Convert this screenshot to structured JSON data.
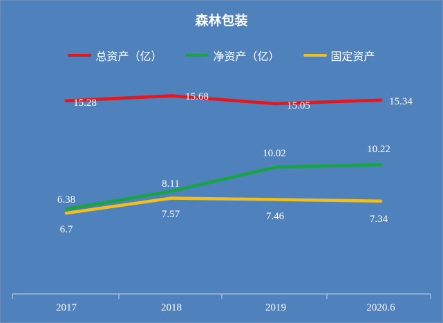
{
  "chart_data": {
    "type": "line",
    "title": "森林包装",
    "categories": [
      "2017",
      "2018",
      "2019",
      "2020.6"
    ],
    "series": [
      {
        "name": "总资产（亿）",
        "color": "#e8151b",
        "values": [
          15.28,
          15.68,
          15.05,
          15.34
        ]
      },
      {
        "name": "净资产（亿）",
        "color": "#17a542",
        "values": [
          6.7,
          8.11,
          10.02,
          10.22
        ]
      },
      {
        "name": "固定资产",
        "color": "#f0bf19",
        "values": [
          6.38,
          7.57,
          7.46,
          7.34
        ]
      }
    ],
    "legend_position": "top",
    "grid": false,
    "data_labels": [
      {
        "series": 0,
        "labels": [
          "15.28",
          "15.68",
          "15.05",
          "15.34"
        ]
      },
      {
        "series": 1,
        "labels": [
          "6.7",
          "8.11",
          "10.02",
          "10.22"
        ]
      },
      {
        "series": 2,
        "labels": [
          "6.38",
          "7.57",
          "7.46",
          "7.34"
        ]
      }
    ]
  }
}
